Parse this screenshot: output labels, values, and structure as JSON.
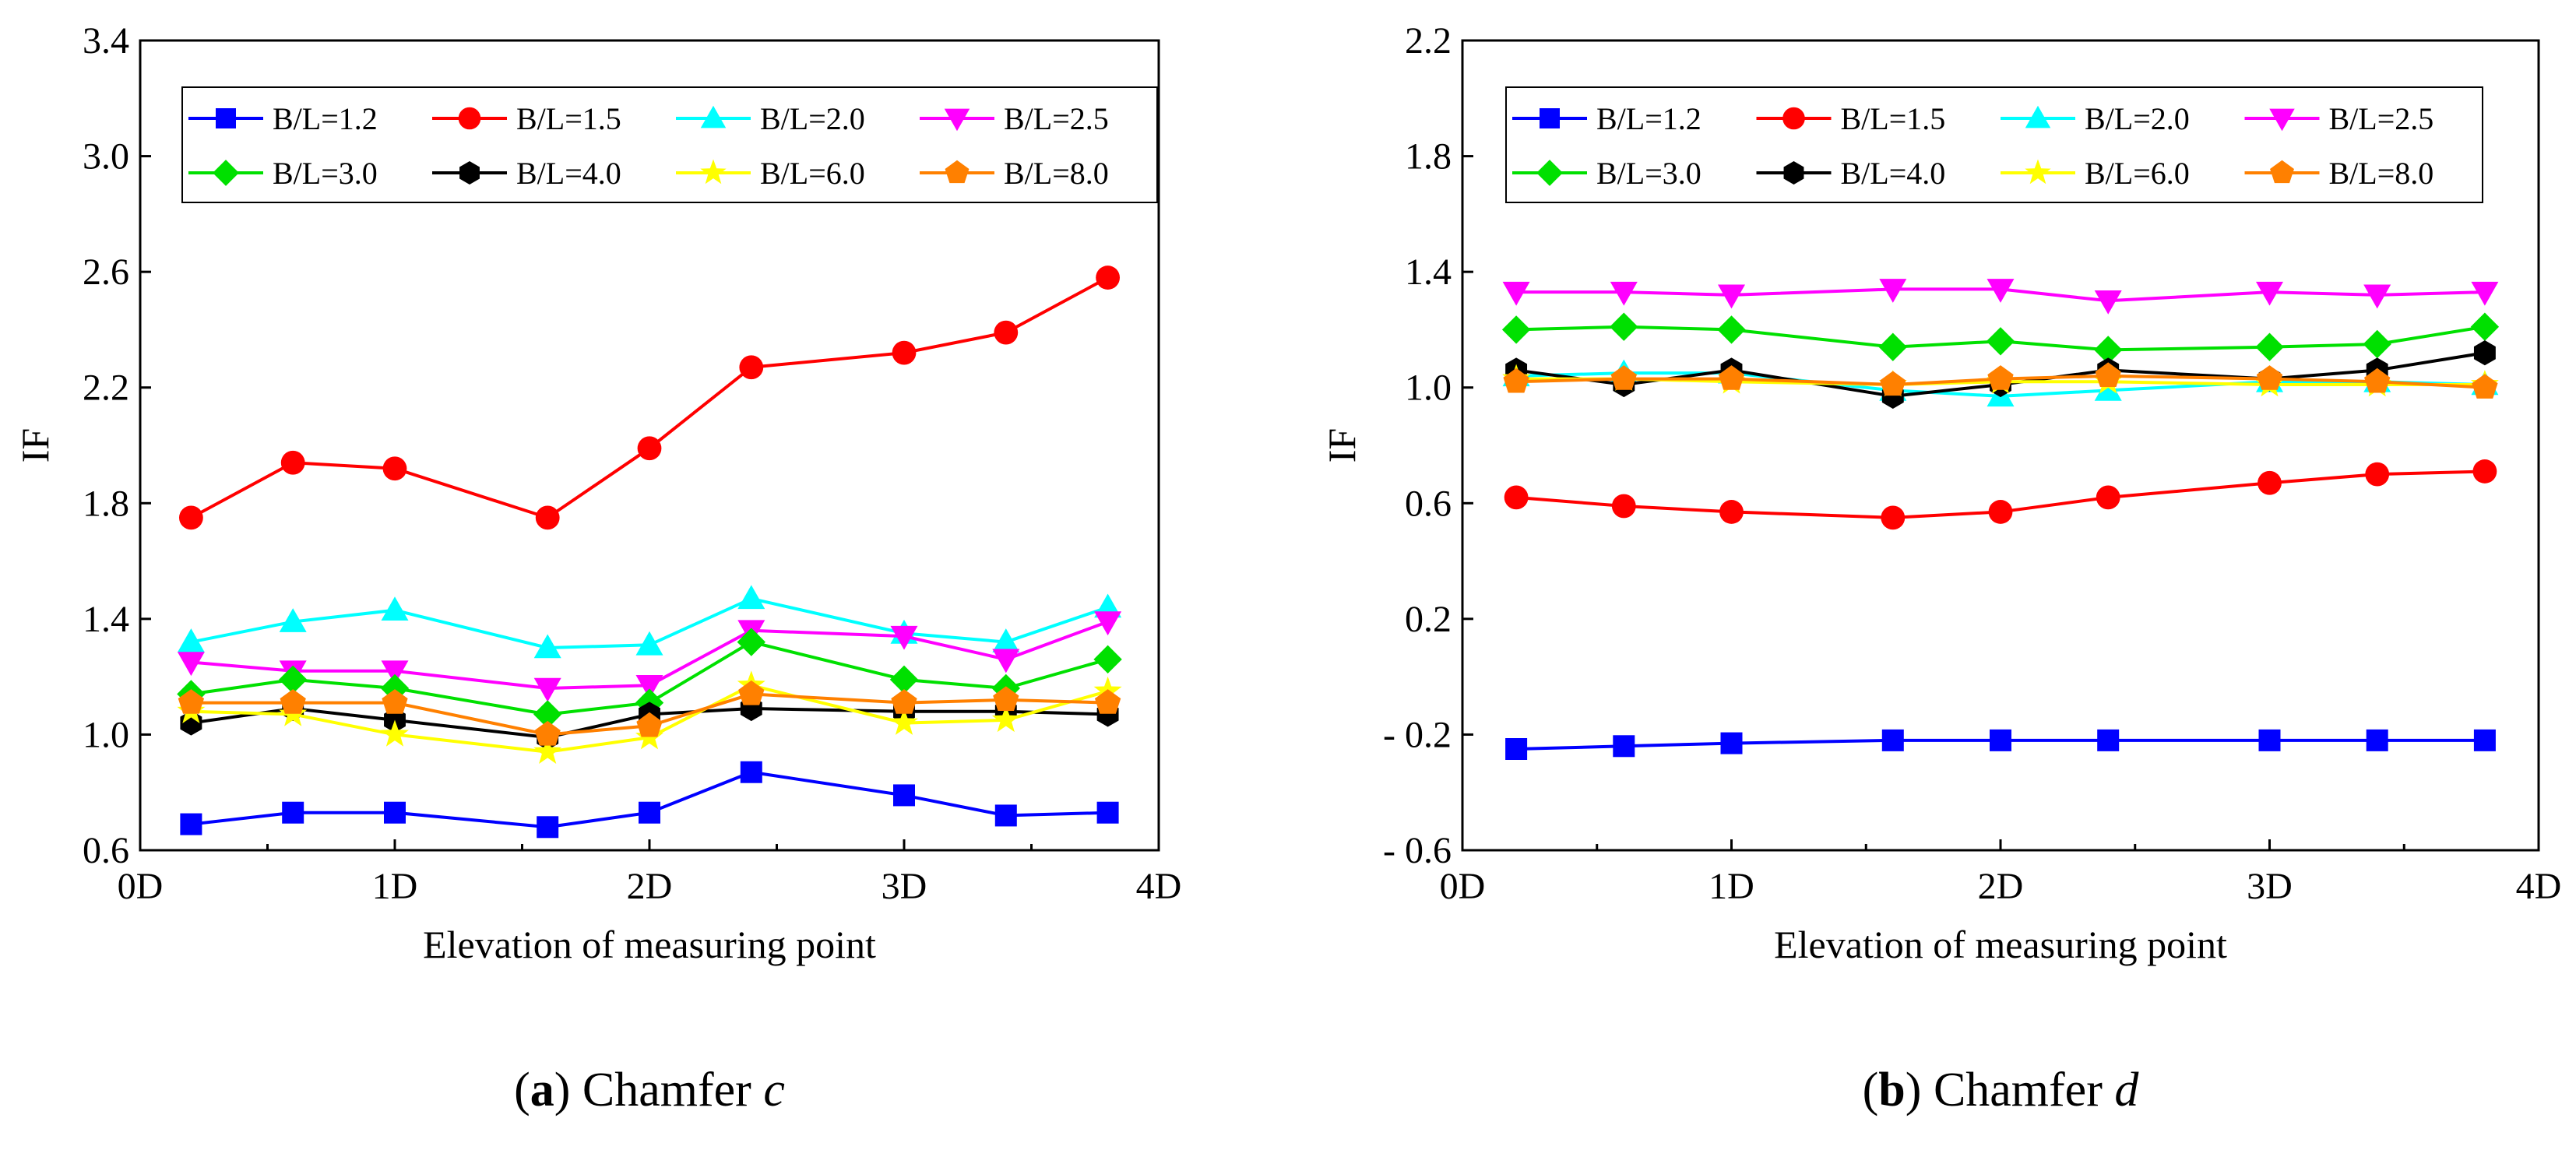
{
  "chart_data": [
    {
      "type": "line",
      "id": "a",
      "caption_label": "a",
      "caption_text": "Chamfer",
      "caption_var": "c",
      "xlabel": "Elevation of measuring point",
      "ylabel": "IF",
      "xlim": [
        0,
        4
      ],
      "ylim": [
        0.6,
        3.4
      ],
      "xticks": [
        0,
        1,
        2,
        3,
        4
      ],
      "xtick_labels": [
        "0D",
        "1D",
        "2D",
        "3D",
        "4D"
      ],
      "yticks": [
        0.6,
        1.0,
        1.4,
        1.8,
        2.2,
        2.6,
        3.0,
        3.4
      ],
      "ytick_labels": [
        "0.6",
        "1.0",
        "1.4",
        "1.8",
        "2.2",
        "2.6",
        "3.0",
        "3.4"
      ],
      "legend_location": "top",
      "x": [
        0.2,
        0.6,
        1.0,
        1.6,
        2.0,
        2.4,
        3.0,
        3.4,
        3.8
      ],
      "series": [
        {
          "name": "B/L=1.2",
          "color": "#0000ff",
          "marker": "square",
          "values": [
            0.69,
            0.73,
            0.73,
            0.68,
            0.73,
            0.87,
            0.79,
            0.72,
            0.73
          ]
        },
        {
          "name": "B/L=1.5",
          "color": "#ff0000",
          "marker": "circle",
          "values": [
            1.75,
            1.94,
            1.92,
            1.75,
            1.99,
            2.27,
            2.32,
            2.39,
            2.58
          ]
        },
        {
          "name": "B/L=2.0",
          "color": "#00ffff",
          "marker": "triangle-up",
          "values": [
            1.32,
            1.39,
            1.43,
            1.3,
            1.31,
            1.47,
            1.35,
            1.32,
            1.44
          ]
        },
        {
          "name": "B/L=2.5",
          "color": "#ff00ff",
          "marker": "triangle-down",
          "values": [
            1.25,
            1.22,
            1.22,
            1.16,
            1.17,
            1.36,
            1.34,
            1.26,
            1.39
          ]
        },
        {
          "name": "B/L=3.0",
          "color": "#00e000",
          "marker": "diamond",
          "values": [
            1.14,
            1.19,
            1.16,
            1.07,
            1.11,
            1.32,
            1.19,
            1.16,
            1.26
          ]
        },
        {
          "name": "B/L=4.0",
          "color": "#000000",
          "marker": "hexagon",
          "values": [
            1.04,
            1.09,
            1.05,
            0.99,
            1.07,
            1.09,
            1.08,
            1.08,
            1.07
          ]
        },
        {
          "name": "B/L=6.0",
          "color": "#ffff00",
          "marker": "star",
          "values": [
            1.08,
            1.07,
            1.0,
            0.94,
            0.99,
            1.17,
            1.04,
            1.05,
            1.15
          ]
        },
        {
          "name": "B/L=8.0",
          "color": "#ff8000",
          "marker": "pentagon",
          "values": [
            1.11,
            1.11,
            1.11,
            1.0,
            1.03,
            1.14,
            1.11,
            1.12,
            1.11
          ]
        }
      ]
    },
    {
      "type": "line",
      "id": "b",
      "caption_label": "b",
      "caption_text": "Chamfer",
      "caption_var": "d",
      "xlabel": "Elevation of measuring point",
      "ylabel": "IF",
      "xlim": [
        0,
        4
      ],
      "ylim": [
        -0.6,
        2.2
      ],
      "xticks": [
        0,
        1,
        2,
        3,
        4
      ],
      "xtick_labels": [
        "0D",
        "1D",
        "2D",
        "3D",
        "4D"
      ],
      "yticks": [
        -0.6,
        -0.2,
        0.2,
        0.6,
        1.0,
        1.4,
        1.8,
        2.2
      ],
      "ytick_labels": [
        "- 0.6",
        "- 0.2",
        "0.2",
        "0.6",
        "1.0",
        "1.4",
        "1.8",
        "2.2"
      ],
      "legend_location": "top",
      "x": [
        0.2,
        0.6,
        1.0,
        1.6,
        2.0,
        2.4,
        3.0,
        3.4,
        3.8
      ],
      "series": [
        {
          "name": "B/L=1.2",
          "color": "#0000ff",
          "marker": "square",
          "values": [
            -0.25,
            -0.24,
            -0.23,
            -0.22,
            -0.22,
            -0.22,
            -0.22,
            -0.22,
            -0.22
          ]
        },
        {
          "name": "B/L=1.5",
          "color": "#ff0000",
          "marker": "circle",
          "values": [
            0.62,
            0.59,
            0.57,
            0.55,
            0.57,
            0.62,
            0.67,
            0.7,
            0.71
          ]
        },
        {
          "name": "B/L=2.0",
          "color": "#00ffff",
          "marker": "triangle-up",
          "values": [
            1.04,
            1.05,
            1.05,
            0.99,
            0.97,
            0.99,
            1.02,
            1.02,
            1.01
          ]
        },
        {
          "name": "B/L=2.5",
          "color": "#ff00ff",
          "marker": "triangle-down",
          "values": [
            1.33,
            1.33,
            1.32,
            1.34,
            1.34,
            1.3,
            1.33,
            1.32,
            1.33
          ]
        },
        {
          "name": "B/L=3.0",
          "color": "#00e000",
          "marker": "diamond",
          "values": [
            1.2,
            1.21,
            1.2,
            1.14,
            1.16,
            1.13,
            1.14,
            1.15,
            1.21
          ]
        },
        {
          "name": "B/L=4.0",
          "color": "#000000",
          "marker": "hexagon",
          "values": [
            1.06,
            1.01,
            1.06,
            0.97,
            1.01,
            1.06,
            1.03,
            1.06,
            1.12
          ]
        },
        {
          "name": "B/L=6.0",
          "color": "#ffff00",
          "marker": "star",
          "values": [
            1.03,
            1.03,
            1.02,
            1.01,
            1.02,
            1.02,
            1.01,
            1.01,
            1.01
          ]
        },
        {
          "name": "B/L=8.0",
          "color": "#ff8000",
          "marker": "pentagon",
          "values": [
            1.02,
            1.03,
            1.03,
            1.01,
            1.03,
            1.04,
            1.03,
            1.02,
            1.0
          ]
        }
      ]
    }
  ]
}
